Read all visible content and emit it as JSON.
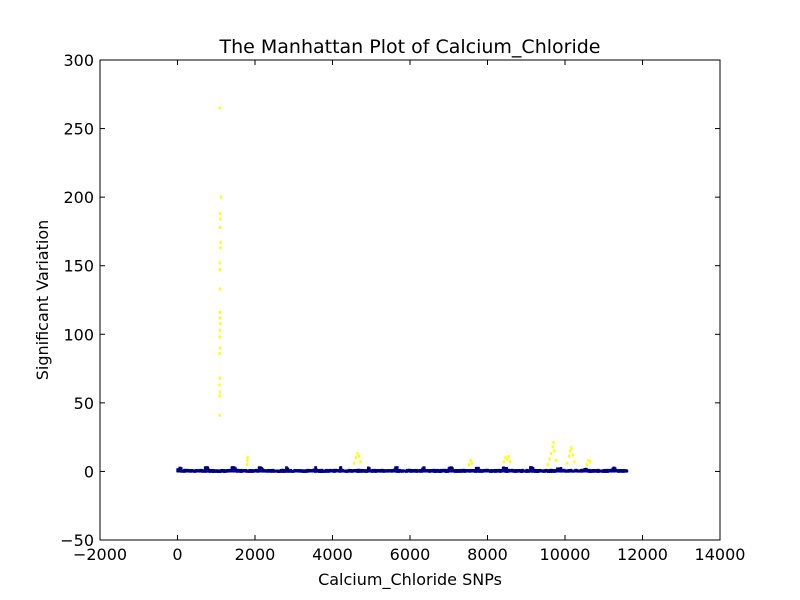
{
  "chart_data": {
    "type": "scatter",
    "title": "The Manhattan Plot of Calcium_Chloride",
    "xlabel": "Calcium_Chloride SNPs",
    "ylabel": "Significant Variation",
    "xlim": [
      -2000,
      14000
    ],
    "ylim": [
      -50,
      300
    ],
    "xticks": [
      -2000,
      0,
      2000,
      4000,
      6000,
      8000,
      10000,
      12000,
      14000
    ],
    "yticks": [
      -50,
      0,
      50,
      100,
      150,
      200,
      250,
      300
    ],
    "xtick_labels": [
      "−2000",
      "0",
      "2000",
      "4000",
      "6000",
      "8000",
      "10000",
      "12000",
      "14000"
    ],
    "ytick_labels": [
      "−50",
      "0",
      "50",
      "100",
      "150",
      "200",
      "250",
      "300"
    ],
    "grid": false,
    "snp_count": 11600,
    "colors": {
      "baseline": "#000080",
      "significant": "#ffff00"
    },
    "series": [
      {
        "color": "#ffff00",
        "points": [
          [
            1090,
            265
          ],
          [
            1120,
            200
          ],
          [
            1100,
            188
          ],
          [
            1105,
            184
          ],
          [
            1095,
            178
          ],
          [
            1110,
            167
          ],
          [
            1100,
            163
          ],
          [
            1085,
            152
          ],
          [
            1092,
            147
          ],
          [
            1098,
            133
          ],
          [
            1088,
            116
          ],
          [
            1095,
            112
          ],
          [
            1102,
            108
          ],
          [
            1090,
            103
          ],
          [
            1084,
            98
          ],
          [
            1099,
            90
          ],
          [
            1087,
            86
          ],
          [
            1093,
            68
          ],
          [
            1080,
            63
          ],
          [
            1091,
            58
          ],
          [
            1086,
            55
          ],
          [
            1083,
            41
          ],
          [
            1790,
            5
          ],
          [
            1800,
            8
          ],
          [
            1810,
            10
          ],
          [
            4560,
            6
          ],
          [
            4600,
            10
          ],
          [
            4640,
            13
          ],
          [
            4680,
            11
          ],
          [
            4720,
            7
          ],
          [
            7520,
            5
          ],
          [
            7560,
            8
          ],
          [
            7600,
            6
          ],
          [
            8420,
            7
          ],
          [
            8460,
            10
          ],
          [
            8500,
            9
          ],
          [
            8540,
            11
          ],
          [
            8580,
            7
          ],
          [
            9550,
            5
          ],
          [
            9600,
            9
          ],
          [
            9640,
            13
          ],
          [
            9680,
            18
          ],
          [
            9700,
            21
          ],
          [
            9720,
            15
          ],
          [
            9760,
            8
          ],
          [
            10050,
            6
          ],
          [
            10100,
            11
          ],
          [
            10130,
            15
          ],
          [
            10160,
            17
          ],
          [
            10200,
            12
          ],
          [
            10240,
            7
          ],
          [
            10560,
            5
          ],
          [
            10600,
            8
          ],
          [
            10640,
            7
          ]
        ]
      }
    ]
  }
}
